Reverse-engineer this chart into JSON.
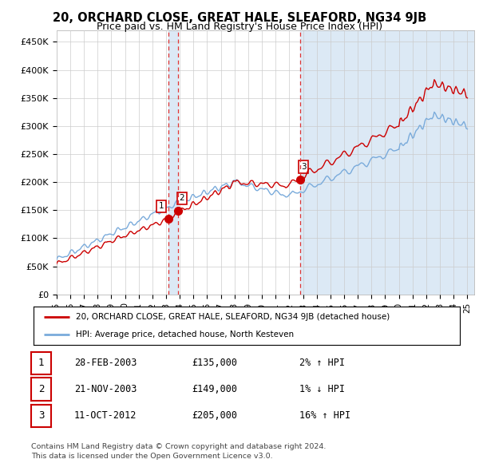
{
  "title": "20, ORCHARD CLOSE, GREAT HALE, SLEAFORD, NG34 9JB",
  "subtitle": "Price paid vs. HM Land Registry's House Price Index (HPI)",
  "ylabel_ticks": [
    "£0",
    "£50K",
    "£100K",
    "£150K",
    "£200K",
    "£250K",
    "£300K",
    "£350K",
    "£400K",
    "£450K"
  ],
  "ytick_values": [
    0,
    50000,
    100000,
    150000,
    200000,
    250000,
    300000,
    350000,
    400000,
    450000
  ],
  "ylim": [
    0,
    470000
  ],
  "xlim_start": 1995.0,
  "xlim_end": 2025.5,
  "sale_dates": [
    2003.16,
    2003.89,
    2012.78
  ],
  "sale_prices": [
    135000,
    149000,
    205000
  ],
  "sale_labels": [
    "1",
    "2",
    "3"
  ],
  "hpi_line_color": "#7aabdb",
  "price_line_color": "#cc0000",
  "dashed_line_color": "#dd3333",
  "shade_color": "#dce9f5",
  "background_color": "#ffffff",
  "grid_color": "#cccccc",
  "legend_entries": [
    "20, ORCHARD CLOSE, GREAT HALE, SLEAFORD, NG34 9JB (detached house)",
    "HPI: Average price, detached house, North Kesteven"
  ],
  "table_rows": [
    {
      "num": "1",
      "date": "28-FEB-2003",
      "price": "£135,000",
      "change": "2% ↑ HPI"
    },
    {
      "num": "2",
      "date": "21-NOV-2003",
      "price": "£149,000",
      "change": "1% ↓ HPI"
    },
    {
      "num": "3",
      "date": "11-OCT-2012",
      "price": "£205,000",
      "change": "16% ↑ HPI"
    }
  ],
  "footer": "Contains HM Land Registry data © Crown copyright and database right 2024.\nThis data is licensed under the Open Government Licence v3.0.",
  "title_fontsize": 10.5,
  "subtitle_fontsize": 9
}
